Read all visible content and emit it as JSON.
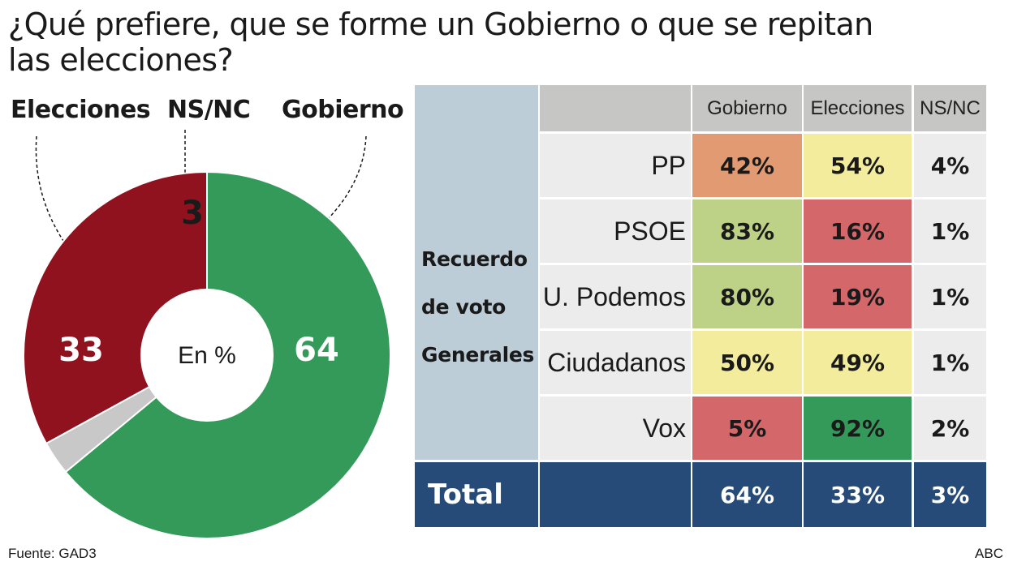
{
  "title": "¿Qué prefiere, que se forme un Gobierno o que se repitan las elecciones?",
  "legend": {
    "elecciones": "Elecciones",
    "nsnc": "NS/NC",
    "gobierno": "Gobierno"
  },
  "center_label": "En %",
  "colors": {
    "gobierno": "#339a59",
    "elecciones": "#8f121e",
    "nsnc": "#c7c8c7",
    "total": "#264b78",
    "row_head": "#bccdd7",
    "header": "#c6c7c4",
    "neutral": "#ececec"
  },
  "chart_data": [
    {
      "type": "pie",
      "title": "¿Qué prefiere, que se forme un Gobierno o que se repitan las elecciones?",
      "unit": "En %",
      "slices": [
        {
          "name": "Gobierno",
          "value": 64,
          "label": "64"
        },
        {
          "name": "NS/NC",
          "value": 3,
          "label": "3"
        },
        {
          "name": "Elecciones",
          "value": 33,
          "label": "33"
        }
      ]
    },
    {
      "type": "table",
      "row_group_label": [
        "Recuerdo",
        "de voto",
        "Generales"
      ],
      "columns": [
        "Gobierno",
        "Elecciones",
        "NS/NC"
      ],
      "rows": [
        {
          "party": "PP",
          "values": [
            "42%",
            "54%",
            "4%"
          ],
          "colors": [
            "#e29a73",
            "#f2ec9c",
            "#ececec"
          ]
        },
        {
          "party": "PSOE",
          "values": [
            "83%",
            "16%",
            "1%"
          ],
          "colors": [
            "#bdd287",
            "#d4676a",
            "#ececec"
          ]
        },
        {
          "party": "U. Podemos",
          "values": [
            "80%",
            "19%",
            "1%"
          ],
          "colors": [
            "#bdd287",
            "#d4676a",
            "#ececec"
          ]
        },
        {
          "party": "Ciudadanos",
          "values": [
            "50%",
            "49%",
            "1%"
          ],
          "colors": [
            "#f2ec9c",
            "#f2ec9c",
            "#ececec"
          ]
        },
        {
          "party": "Vox",
          "values": [
            "5%",
            "92%",
            "2%"
          ],
          "colors": [
            "#d4676a",
            "#339a59",
            "#ececec"
          ]
        }
      ],
      "total": {
        "label": "Total",
        "values": [
          "64%",
          "33%",
          "3%"
        ]
      }
    }
  ],
  "footer": {
    "source": "Fuente: GAD3",
    "brand": "ABC"
  }
}
